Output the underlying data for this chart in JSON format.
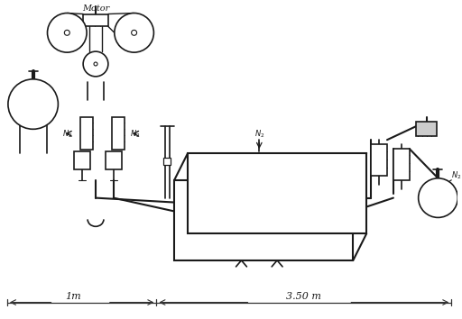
{
  "title": "",
  "background": "#ffffff",
  "line_color": "#1a1a1a",
  "lw": 1.2,
  "motor_label": "Motor",
  "n2_labels": [
    "N2",
    "N2",
    "N2",
    "N2"
  ],
  "dim_label_1m": "1m",
  "dim_label_350": "3.50 m",
  "fig_width": 5.12,
  "fig_height": 3.54,
  "dpi": 100
}
